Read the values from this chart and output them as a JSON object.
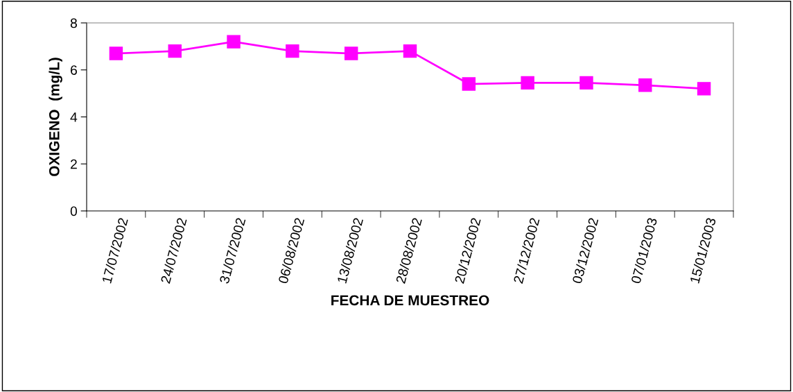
{
  "chart_data": {
    "type": "line",
    "xlabel": "FECHA DE MUESTREO",
    "ylabel": "OXIGENO  (mg/L)",
    "categories": [
      "17/07/2002",
      "24/07/2002",
      "31/07/2002",
      "06/08/2002",
      "13/08/2002",
      "28/08/2002",
      "20/12/2002",
      "27/12/2002",
      "03/12/2002",
      "07/01/2003",
      "15/01/2003"
    ],
    "series": [
      {
        "color": "#ff00ff",
        "values": [
          6.7,
          6.8,
          7.2,
          6.8,
          6.7,
          6.8,
          5.4,
          5.45,
          5.45,
          5.35,
          5.2
        ]
      }
    ],
    "ylim": [
      0,
      8
    ],
    "yticks": [
      0,
      2,
      4,
      6,
      8
    ],
    "grid": false,
    "legend": false,
    "marker": "square",
    "line_style": "solid"
  }
}
